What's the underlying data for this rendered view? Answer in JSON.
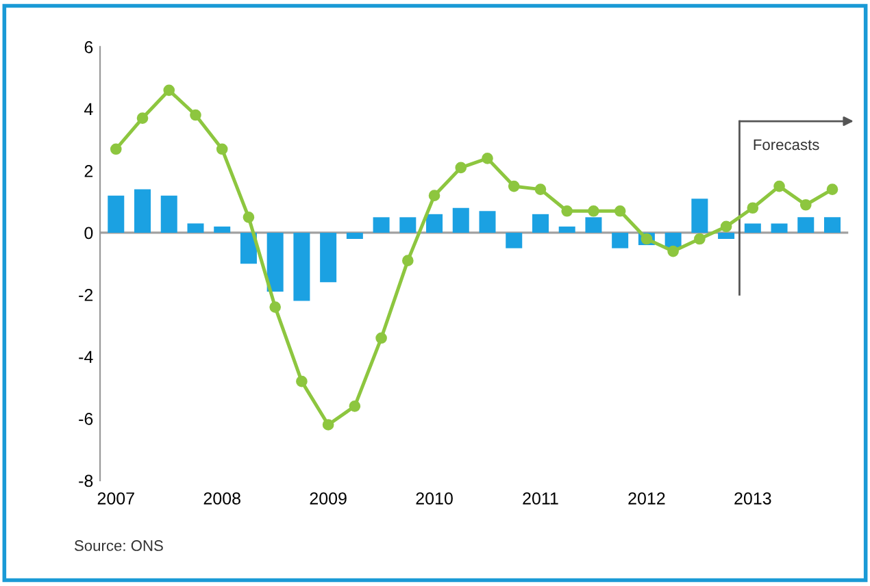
{
  "chart_data": {
    "type": "bar",
    "categories": [
      "2007",
      null,
      null,
      null,
      "2008",
      null,
      null,
      null,
      "2009",
      null,
      null,
      null,
      "2010",
      null,
      null,
      null,
      "2011",
      null,
      null,
      null,
      "2012",
      null,
      null,
      null,
      "2013",
      null,
      null,
      null
    ],
    "series": [
      {
        "color": "#1ba1e2",
        "values": [
          1.2,
          1.4,
          1.2,
          0.3,
          0.2,
          -1.0,
          -1.9,
          -2.2,
          -1.6,
          -0.2,
          0.5,
          0.5,
          0.6,
          0.8,
          0.7,
          -0.5,
          0.6,
          0.2,
          0.5,
          -0.5,
          -0.4,
          -0.5,
          1.1,
          -0.2,
          0.3,
          0.3,
          0.5,
          0.5
        ]
      },
      {
        "type": "line",
        "color": "#8dc63f",
        "marker": "circle",
        "line_style": "solid",
        "values": [
          2.7,
          3.7,
          4.6,
          3.8,
          2.7,
          0.5,
          -2.4,
          -4.8,
          -6.2,
          -5.6,
          -3.4,
          -0.9,
          1.2,
          2.1,
          2.4,
          1.5,
          1.4,
          0.7,
          0.7,
          0.7,
          -0.2,
          -0.6,
          -0.2,
          0.2,
          0.8,
          1.5,
          0.9,
          1.4
        ]
      }
    ],
    "ylim": [
      -8,
      6
    ],
    "yticks": [
      -8,
      -6,
      -4,
      -2,
      0,
      2,
      4,
      6
    ],
    "ref_lines": [
      {
        "axis": "y",
        "value": 0,
        "color": "#a0a0a0"
      }
    ],
    "grid": false,
    "legend": false,
    "annotations": [
      "Forecasts",
      "Source: ONS"
    ]
  }
}
